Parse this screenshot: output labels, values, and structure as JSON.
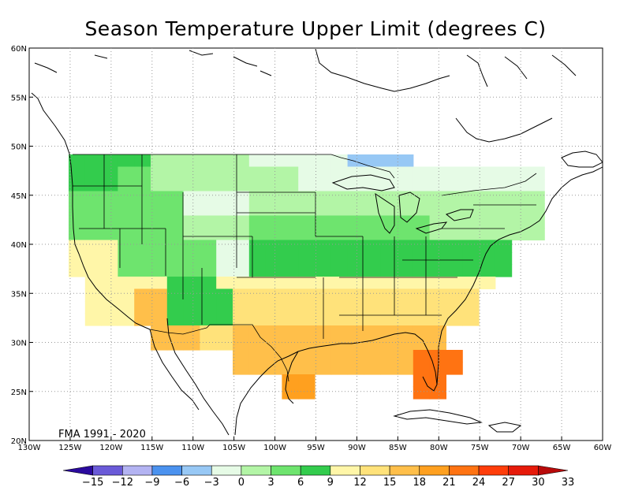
{
  "title": "Season Temperature Upper Limit (degrees C)",
  "period_label": "FMA 1991 - 2020",
  "map": {
    "lon_range": [
      -130,
      -60
    ],
    "lat_range": [
      20,
      60
    ],
    "grid": true,
    "x_ticks": [
      "130W",
      "125W",
      "120W",
      "115W",
      "110W",
      "105W",
      "100W",
      "95W",
      "90W",
      "85W",
      "80W",
      "75W",
      "70W",
      "65W",
      "60W"
    ],
    "y_ticks": [
      "20N",
      "25N",
      "30N",
      "35N",
      "40N",
      "45N",
      "50N",
      "55N",
      "60N"
    ]
  },
  "colorbar": {
    "labels": [
      "-15",
      "-12",
      "-9",
      "-6",
      "-3",
      "0",
      "3",
      "6",
      "9",
      "12",
      "15",
      "18",
      "21",
      "24",
      "27",
      "30",
      "33"
    ],
    "colors": [
      "#2b0a9e",
      "#6a5ad8",
      "#b3b3f2",
      "#4b92ef",
      "#97c8f5",
      "#e6fbe6",
      "#b3f5a6",
      "#6ee46e",
      "#33cc4d",
      "#fff6a8",
      "#ffe27a",
      "#ffbf4a",
      "#ffa01f",
      "#ff7312",
      "#ff3d0a",
      "#e61a0a",
      "#b80a0a"
    ]
  }
}
